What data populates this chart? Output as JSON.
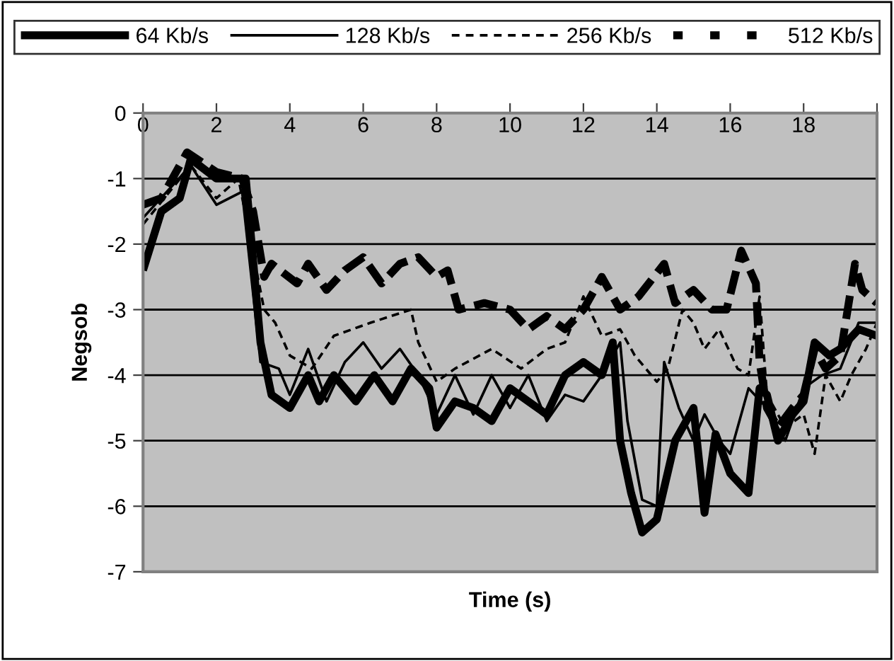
{
  "chart_data": {
    "type": "line",
    "xlabel": "Time (s)",
    "ylabel": "Negsob",
    "xlim": [
      0,
      20
    ],
    "xticks": [
      0,
      2,
      4,
      6,
      8,
      10,
      12,
      14,
      16,
      18,
      {
        "value": 20,
        "label": null
      }
    ],
    "ylim": [
      -7,
      0
    ],
    "yticks": [
      -7,
      -6,
      -5,
      -4,
      -3,
      -2,
      -1,
      0
    ],
    "grid": "y",
    "legend": "top",
    "marker": "none",
    "series": [
      {
        "name": "64 Kb/s",
        "color": "#000000",
        "line_style": "solid",
        "x": [
          0,
          0.5,
          1,
          1.3,
          2,
          2.8,
          3.2,
          3.5,
          4,
          4.5,
          4.8,
          5.2,
          5.8,
          6.3,
          6.8,
          7.3,
          7.8,
          8,
          8.5,
          9,
          9.5,
          10,
          10.5,
          11,
          11.5,
          12,
          12.5,
          12.8,
          13,
          13.3,
          13.6,
          14,
          14.5,
          15,
          15.3,
          15.6,
          16,
          16.5,
          16.8,
          17,
          17.3,
          17.7,
          18,
          18.3,
          18.7,
          19,
          19.5,
          20
        ],
        "values": [
          -2.4,
          -1.5,
          -1.3,
          -0.7,
          -1.0,
          -1.0,
          -3.5,
          -4.3,
          -4.5,
          -4.0,
          -4.4,
          -4.0,
          -4.4,
          -4.0,
          -4.4,
          -3.9,
          -4.2,
          -4.8,
          -4.4,
          -4.5,
          -4.7,
          -4.2,
          -4.4,
          -4.6,
          -4.0,
          -3.8,
          -4.0,
          -3.5,
          -5.0,
          -5.8,
          -6.4,
          -6.2,
          -5.0,
          -4.5,
          -6.1,
          -4.9,
          -5.5,
          -5.8,
          -4.2,
          -4.3,
          -5.0,
          -4.6,
          -4.4,
          -3.5,
          -3.7,
          -3.6,
          -3.3,
          -3.4
        ]
      },
      {
        "name": "128 Kb/s",
        "color": "#000000",
        "line_style": "solid",
        "x": [
          0,
          1.3,
          2,
          2.7,
          3.2,
          3.7,
          4,
          4.5,
          5,
          5.5,
          6,
          6.5,
          7,
          7.5,
          8,
          8.5,
          9,
          9.5,
          10,
          10.5,
          11,
          11.5,
          12,
          12.5,
          13,
          13.2,
          13.6,
          14,
          14.2,
          14.6,
          15,
          15.3,
          15.7,
          16,
          16.5,
          17,
          17.5,
          18,
          18.5,
          19,
          19.5,
          20
        ],
        "values": [
          -1.6,
          -0.8,
          -1.4,
          -1.2,
          -3.8,
          -3.9,
          -4.3,
          -3.6,
          -4.4,
          -3.8,
          -3.5,
          -3.9,
          -3.6,
          -4.0,
          -4.6,
          -4.0,
          -4.6,
          -4.0,
          -4.5,
          -4.0,
          -4.7,
          -4.3,
          -4.4,
          -4.0,
          -3.5,
          -4.7,
          -5.9,
          -6.0,
          -3.8,
          -4.5,
          -5.0,
          -4.6,
          -5.0,
          -5.2,
          -4.2,
          -4.5,
          -5.0,
          -4.2,
          -4.0,
          -3.9,
          -3.2,
          -3.2
        ]
      },
      {
        "name": "256 Kb/s",
        "color": "#000000",
        "line_style": "dashed",
        "x": [
          0,
          1.3,
          2,
          2.6,
          3.3,
          3.6,
          4,
          4.6,
          5.2,
          6.2,
          7.3,
          7.5,
          8,
          8.5,
          9.5,
          10.3,
          11,
          11.5,
          12,
          12.5,
          13,
          13.4,
          14,
          14.3,
          14.7,
          15,
          15.3,
          15.7,
          16.2,
          16.5,
          16.8,
          17,
          17.5,
          18,
          18.3,
          18.6,
          19,
          19.3,
          19.7,
          20
        ],
        "values": [
          -1.7,
          -0.8,
          -1.3,
          -1.0,
          -3.0,
          -3.2,
          -3.7,
          -3.9,
          -3.4,
          -3.2,
          -3.0,
          -3.5,
          -4.1,
          -3.9,
          -3.6,
          -3.9,
          -3.6,
          -3.5,
          -2.8,
          -3.4,
          -3.3,
          -3.7,
          -4.1,
          -3.9,
          -3.0,
          -3.2,
          -3.6,
          -3.3,
          -3.9,
          -4.0,
          -2.8,
          -4.3,
          -4.8,
          -4.6,
          -5.2,
          -4.0,
          -4.4,
          -4.0,
          -3.6,
          -3.2
        ]
      },
      {
        "name": "512 Kb/s",
        "color": "#000000",
        "line_style": "dashed",
        "x": [
          0,
          0.5,
          1.2,
          2,
          2.7,
          3.0,
          3.3,
          3.5,
          4.2,
          4.5,
          5,
          5.5,
          6,
          6.5,
          7,
          7.5,
          8,
          8.3,
          8.6,
          9.3,
          10,
          10.5,
          11,
          11.5,
          12,
          12.5,
          13,
          13.5,
          14.2,
          14.5,
          15,
          15.5,
          15.9,
          16.3,
          16.7,
          16.8,
          17,
          17.3,
          17.7,
          18,
          18.3,
          18.6,
          19,
          19.4,
          19.6,
          20
        ],
        "values": [
          -1.4,
          -1.3,
          -0.6,
          -0.9,
          -1.0,
          -1.5,
          -2.5,
          -2.3,
          -2.6,
          -2.3,
          -2.7,
          -2.4,
          -2.2,
          -2.6,
          -2.3,
          -2.2,
          -2.5,
          -2.4,
          -3.0,
          -2.9,
          -3.0,
          -3.3,
          -3.1,
          -3.3,
          -3.0,
          -2.5,
          -3.0,
          -2.8,
          -2.3,
          -2.9,
          -2.7,
          -3.0,
          -3.0,
          -2.1,
          -2.6,
          -3.8,
          -4.5,
          -4.8,
          -4.5,
          -4.3,
          -3.6,
          -3.9,
          -3.7,
          -2.3,
          -2.7,
          -2.9
        ]
      }
    ]
  }
}
